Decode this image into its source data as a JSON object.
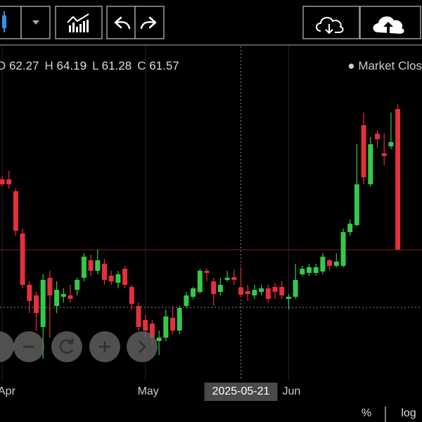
{
  "ohlc_labels": [
    "O",
    "H",
    "L",
    "C"
  ],
  "status": "Market Clos",
  "bottom_buttons": [
    "%",
    "log"
  ],
  "chart_data": {
    "type": "candlestick",
    "categories": [
      "Apr",
      null,
      null,
      null,
      null,
      null,
      null,
      null,
      null,
      null,
      null,
      null,
      null,
      null,
      null,
      null,
      null,
      null,
      null,
      null,
      null,
      "May",
      null,
      null,
      null,
      null,
      null,
      null,
      null,
      null,
      null,
      null,
      null,
      null,
      null,
      "2025-05-21",
      null,
      null,
      null,
      null,
      null,
      null,
      "Jun",
      null,
      null,
      null,
      null,
      null,
      null,
      null,
      null,
      null,
      null,
      null,
      null,
      null,
      null,
      null,
      null
    ],
    "open": [
      72.5,
      72.5,
      71.37,
      67.37,
      62.5,
      61.5,
      58.5,
      63.17,
      60.5,
      61.37,
      61.5,
      62.03,
      63.17,
      64.83,
      63.83,
      64.5,
      63.37,
      62.7,
      64.03,
      62.3,
      60.5,
      59.17,
      58.83,
      57.17,
      57.5,
      59.37,
      58.17,
      60.5,
      61.37,
      61.83,
      63.83,
      62.83,
      61.83,
      62.97,
      63.23,
      62.27,
      61.9,
      61.5,
      61.83,
      62.17,
      62.3,
      62.3,
      61.17,
      61.37,
      63.5,
      63.63,
      63.63,
      63.77,
      64.83,
      64.3,
      64.3,
      67.5,
      68.17,
      77.63,
      72.03,
      76.83,
      74.97,
      75.63,
      79.17
    ],
    "high": [
      72.83,
      73.3,
      71.63,
      67.83,
      62.83,
      61.83,
      63.5,
      63.83,
      62.83,
      62.17,
      62.5,
      63.17,
      65.5,
      65.37,
      65.83,
      64.97,
      63.83,
      63.83,
      64.3,
      62.5,
      60.83,
      59.63,
      59.17,
      58.17,
      60.17,
      60.5,
      60.5,
      61.83,
      62.3,
      64.03,
      64.03,
      63.17,
      63.17,
      63.83,
      63.97,
      64.19,
      62.5,
      62.5,
      62.5,
      62.5,
      62.7,
      62.83,
      61.63,
      64.5,
      64.3,
      64.5,
      64.5,
      65.5,
      64.97,
      65.5,
      67.83,
      68.7,
      75.83,
      78.83,
      76.5,
      77.17,
      76.83,
      78.83,
      79.63
    ],
    "low": [
      71.83,
      71.63,
      67.17,
      62.17,
      59.83,
      58.17,
      55.5,
      57.5,
      59.83,
      60.83,
      60.83,
      61.5,
      62.83,
      63.37,
      63.5,
      62.5,
      62.5,
      62.17,
      62.17,
      60.17,
      58.17,
      57.5,
      56.83,
      55.83,
      57.17,
      57.83,
      57.83,
      60.3,
      61.17,
      61.63,
      62.83,
      60.5,
      61.5,
      62.83,
      62.5,
      61.28,
      60.97,
      61.17,
      61.5,
      60.83,
      61.17,
      61.17,
      60.17,
      61.17,
      63.3,
      63.37,
      63.37,
      63.5,
      63.83,
      64.17,
      64.17,
      67.17,
      68.03,
      72.03,
      71.83,
      75.5,
      73.83,
      75.37,
      65.83
    ],
    "close": [
      72.03,
      72.03,
      67.63,
      62.5,
      60.97,
      59.83,
      62.97,
      61.5,
      62.03,
      61.63,
      61.17,
      62.97,
      65.17,
      63.83,
      64.83,
      62.97,
      62.83,
      63.5,
      62.5,
      60.7,
      58.5,
      58.17,
      57.5,
      57.5,
      59.5,
      58.17,
      60.3,
      61.5,
      62.17,
      63.83,
      63.63,
      61.63,
      62.5,
      63.17,
      62.97,
      61.57,
      61.63,
      62.03,
      62.17,
      61.17,
      61.83,
      61.5,
      61.37,
      62.97,
      64.03,
      64.17,
      64.17,
      65.17,
      64.3,
      64.7,
      67.5,
      68.3,
      72.03,
      72.7,
      75.83,
      76.3,
      74.7,
      76.03,
      65.83
    ],
    "up_color": "#33c94a",
    "down_color": "#e3313b",
    "last_price_color": "#7a1a1a",
    "ylim": [
      53.5,
      85.1
    ],
    "crosshair_index": 35,
    "crosshair_price": 60.37,
    "grid": true
  }
}
